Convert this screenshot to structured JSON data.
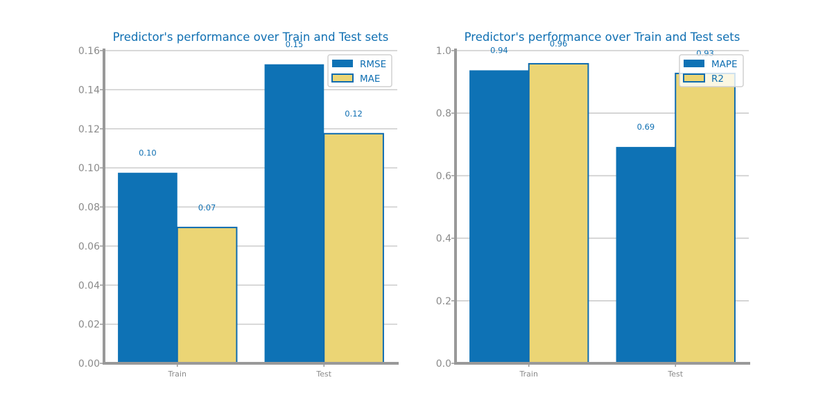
{
  "colors": {
    "series_primary": "#0e72b5",
    "series_secondary": "#ebd575",
    "bar_edge": "#0e6bb0",
    "grid": "#cccccc",
    "axis": "#999999",
    "title": "#0f6fb2",
    "tick_text": "#8a8a8a"
  },
  "chart_data": [
    {
      "type": "bar",
      "title": "Predictor's performance over Train and Test sets",
      "xlabel": "",
      "ylabel": "",
      "categories": [
        "Train",
        "Test"
      ],
      "series": [
        {
          "name": "RMSE",
          "values": [
            0.0975,
            0.153
          ],
          "labels": [
            "0.10",
            "0.15"
          ]
        },
        {
          "name": "MAE",
          "values": [
            0.0695,
            0.1175
          ],
          "labels": [
            "0.07",
            "0.12"
          ]
        }
      ],
      "ylim": [
        0,
        0.16
      ],
      "yticks": [
        0.0,
        0.02,
        0.04,
        0.06,
        0.08,
        0.1,
        0.12,
        0.14,
        0.16
      ],
      "ytick_labels": [
        "0.00",
        "0.02",
        "0.04",
        "0.06",
        "0.08",
        "0.10",
        "0.12",
        "0.14",
        "0.16"
      ],
      "grid": "horizontal",
      "legend": "top-right"
    },
    {
      "type": "bar",
      "title": "Predictor's performance over Train and Test sets",
      "xlabel": "",
      "ylabel": "",
      "categories": [
        "Train",
        "Test"
      ],
      "series": [
        {
          "name": "MAPE",
          "values": [
            0.937,
            0.692
          ],
          "labels": [
            "0.94",
            "0.69"
          ]
        },
        {
          "name": "R2",
          "values": [
            0.958,
            0.927
          ],
          "labels": [
            "0.96",
            "0.93"
          ]
        }
      ],
      "ylim": [
        0,
        1.0
      ],
      "yticks": [
        0.0,
        0.2,
        0.4,
        0.6,
        0.8,
        1.0
      ],
      "ytick_labels": [
        "0.0",
        "0.2",
        "0.4",
        "0.6",
        "0.8",
        "1.0"
      ],
      "grid": "horizontal",
      "legend": "top-right"
    }
  ]
}
